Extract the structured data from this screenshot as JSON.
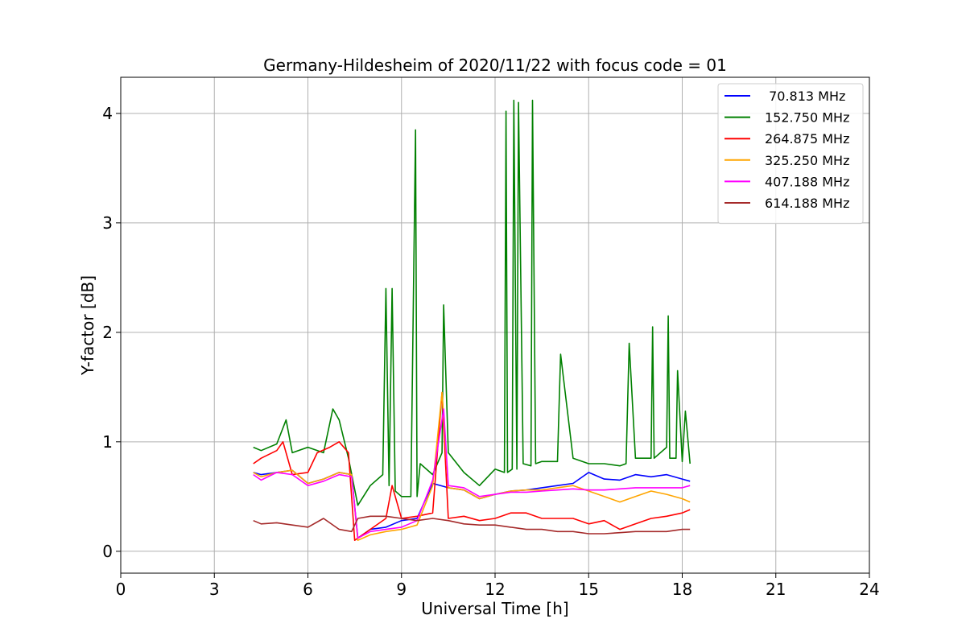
{
  "chart_data": {
    "type": "line",
    "title": "Germany-Hildesheim of 2020/11/22 with focus code = 01",
    "xlabel": "Universal Time [h]",
    "ylabel": "Y-factor [dB]",
    "xlim": [
      0,
      24
    ],
    "ylim": [
      -0.2,
      4.33
    ],
    "xticks": [
      0,
      3,
      6,
      9,
      12,
      15,
      18,
      21,
      24
    ],
    "yticks": [
      0,
      1,
      2,
      3,
      4
    ],
    "grid": true,
    "legend_position": "top-right",
    "series": [
      {
        "name": " 70.813 MHz",
        "color": "#0000ff",
        "x": [
          4.25,
          4.5,
          5.0,
          5.5,
          6.0,
          6.5,
          7.0,
          7.4,
          7.6,
          8.0,
          8.5,
          9.0,
          9.5,
          10.0,
          10.5,
          11.0,
          11.5,
          12.0,
          12.5,
          13.0,
          13.5,
          14.0,
          14.5,
          15.0,
          15.5,
          16.0,
          16.5,
          17.0,
          17.5,
          18.0,
          18.25
        ],
        "values": [
          0.72,
          0.7,
          0.72,
          0.74,
          0.62,
          0.66,
          0.72,
          0.7,
          0.12,
          0.2,
          0.22,
          0.28,
          0.3,
          0.62,
          0.58,
          0.56,
          0.48,
          0.52,
          0.55,
          0.56,
          0.58,
          0.6,
          0.62,
          0.72,
          0.66,
          0.65,
          0.7,
          0.68,
          0.7,
          0.66,
          0.64
        ]
      },
      {
        "name": "152.750 MHz",
        "color": "#008000",
        "x": [
          4.25,
          4.5,
          5.0,
          5.3,
          5.5,
          6.0,
          6.5,
          6.8,
          7.0,
          7.3,
          7.6,
          8.0,
          8.4,
          8.5,
          8.6,
          8.7,
          8.8,
          9.0,
          9.3,
          9.45,
          9.5,
          9.6,
          10.0,
          10.3,
          10.35,
          10.5,
          11.0,
          11.5,
          12.0,
          12.3,
          12.35,
          12.4,
          12.55,
          12.6,
          12.7,
          12.75,
          12.9,
          13.15,
          13.2,
          13.3,
          13.5,
          14.0,
          14.1,
          14.5,
          15.0,
          15.5,
          16.0,
          16.2,
          16.3,
          16.5,
          17.0,
          17.05,
          17.1,
          17.5,
          17.55,
          17.6,
          17.8,
          17.85,
          18.0,
          18.1,
          18.25
        ],
        "values": [
          0.95,
          0.92,
          0.98,
          1.2,
          0.9,
          0.95,
          0.9,
          1.3,
          1.2,
          0.85,
          0.42,
          0.6,
          0.7,
          2.4,
          0.6,
          2.4,
          0.55,
          0.5,
          0.5,
          3.85,
          0.5,
          0.8,
          0.7,
          0.9,
          2.25,
          0.9,
          0.72,
          0.6,
          0.75,
          0.72,
          4.02,
          0.72,
          0.75,
          4.12,
          0.75,
          4.1,
          0.8,
          0.78,
          4.12,
          0.8,
          0.82,
          0.82,
          1.8,
          0.85,
          0.8,
          0.8,
          0.78,
          0.8,
          1.9,
          0.85,
          0.85,
          2.05,
          0.85,
          0.95,
          2.15,
          0.85,
          0.85,
          1.65,
          0.82,
          1.28,
          0.8
        ]
      },
      {
        "name": "264.875 MHz",
        "color": "#ff0000",
        "x": [
          4.25,
          4.5,
          5.0,
          5.2,
          5.5,
          6.0,
          6.3,
          6.7,
          7.0,
          7.3,
          7.5,
          8.0,
          8.5,
          8.7,
          9.0,
          9.5,
          10.0,
          10.3,
          10.5,
          11.0,
          11.5,
          12.0,
          12.5,
          13.0,
          13.5,
          14.0,
          14.5,
          15.0,
          15.5,
          16.0,
          16.5,
          17.0,
          17.5,
          18.0,
          18.25
        ],
        "values": [
          0.8,
          0.85,
          0.92,
          1.0,
          0.7,
          0.72,
          0.9,
          0.95,
          1.0,
          0.9,
          0.1,
          0.2,
          0.3,
          0.6,
          0.3,
          0.32,
          0.35,
          1.45,
          0.3,
          0.32,
          0.28,
          0.3,
          0.35,
          0.35,
          0.3,
          0.3,
          0.3,
          0.25,
          0.28,
          0.2,
          0.25,
          0.3,
          0.32,
          0.35,
          0.38
        ]
      },
      {
        "name": "325.250 MHz",
        "color": "#ffa500",
        "x": [
          4.25,
          4.5,
          5.0,
          5.5,
          6.0,
          6.5,
          7.0,
          7.4,
          7.6,
          8.0,
          8.5,
          9.0,
          9.5,
          10.0,
          10.3,
          10.5,
          11.0,
          11.5,
          12.0,
          12.5,
          13.0,
          13.5,
          14.0,
          14.5,
          15.0,
          15.5,
          16.0,
          16.5,
          17.0,
          17.5,
          18.0,
          18.25
        ],
        "values": [
          0.72,
          0.68,
          0.72,
          0.74,
          0.62,
          0.66,
          0.72,
          0.7,
          0.1,
          0.15,
          0.18,
          0.2,
          0.24,
          0.6,
          1.45,
          0.58,
          0.56,
          0.48,
          0.52,
          0.55,
          0.56,
          0.56,
          0.58,
          0.6,
          0.55,
          0.5,
          0.45,
          0.5,
          0.55,
          0.52,
          0.48,
          0.45
        ]
      },
      {
        "name": "407.188 MHz",
        "color": "#ff00ff",
        "x": [
          4.25,
          4.5,
          5.0,
          5.5,
          6.0,
          6.5,
          7.0,
          7.4,
          7.6,
          8.0,
          8.5,
          9.0,
          9.5,
          10.0,
          10.35,
          10.5,
          11.0,
          11.5,
          12.0,
          12.5,
          13.0,
          13.5,
          14.0,
          14.5,
          15.0,
          15.5,
          16.0,
          16.5,
          17.0,
          17.5,
          18.0,
          18.25
        ],
        "values": [
          0.7,
          0.65,
          0.72,
          0.7,
          0.6,
          0.64,
          0.7,
          0.68,
          0.12,
          0.18,
          0.2,
          0.22,
          0.28,
          0.65,
          1.3,
          0.6,
          0.58,
          0.5,
          0.52,
          0.54,
          0.54,
          0.55,
          0.56,
          0.57,
          0.56,
          0.56,
          0.57,
          0.58,
          0.58,
          0.58,
          0.58,
          0.6
        ]
      },
      {
        "name": "614.188 MHz",
        "color": "#a52a2a",
        "x": [
          4.25,
          4.5,
          5.0,
          5.5,
          6.0,
          6.5,
          7.0,
          7.4,
          7.6,
          8.0,
          8.5,
          9.0,
          9.5,
          10.0,
          10.5,
          11.0,
          11.5,
          12.0,
          12.5,
          13.0,
          13.5,
          14.0,
          14.5,
          15.0,
          15.5,
          16.0,
          16.5,
          17.0,
          17.5,
          18.0,
          18.25
        ],
        "values": [
          0.28,
          0.25,
          0.26,
          0.24,
          0.22,
          0.3,
          0.2,
          0.18,
          0.3,
          0.32,
          0.32,
          0.3,
          0.28,
          0.3,
          0.28,
          0.25,
          0.24,
          0.24,
          0.22,
          0.2,
          0.2,
          0.18,
          0.18,
          0.16,
          0.16,
          0.17,
          0.18,
          0.18,
          0.18,
          0.2,
          0.2
        ]
      }
    ]
  }
}
